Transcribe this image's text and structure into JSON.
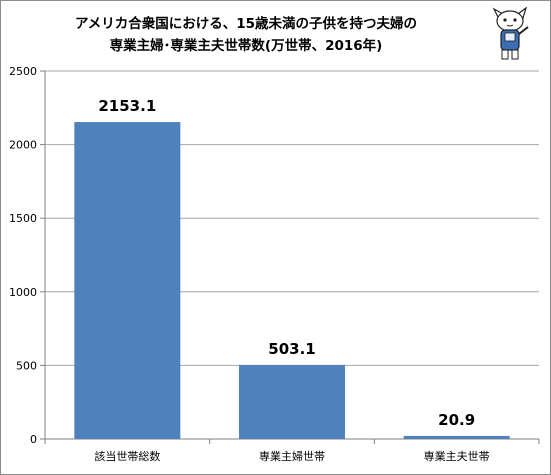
{
  "title_line1": "アメリカ合衆国における、15歳未満の子供を持つ夫婦の",
  "title_line2": "専業主婦･専業主夫世帯数(万世帯、2016年)",
  "mascot": {
    "icon": "mascot-illustration"
  },
  "colors": {
    "bar": "#4f81bd",
    "axis": "#808080",
    "grid": "#a6a6a6"
  },
  "chart_data": {
    "type": "bar",
    "categories": [
      "該当世帯総数",
      "専業主婦世帯",
      "専業主夫世帯"
    ],
    "values": [
      2153.1,
      503.1,
      20.9
    ],
    "data_labels": [
      "2153.1",
      "503.1",
      "20.9"
    ],
    "title": "アメリカ合衆国における、15歳未満の子供を持つ夫婦の専業主婦･専業主夫世帯数(万世帯、2016年)",
    "xlabel": "",
    "ylabel": "",
    "ylim": [
      0,
      2500
    ],
    "yticks": [
      0,
      500,
      1000,
      1500,
      2000,
      2500
    ],
    "grid": true,
    "legend": "none"
  }
}
